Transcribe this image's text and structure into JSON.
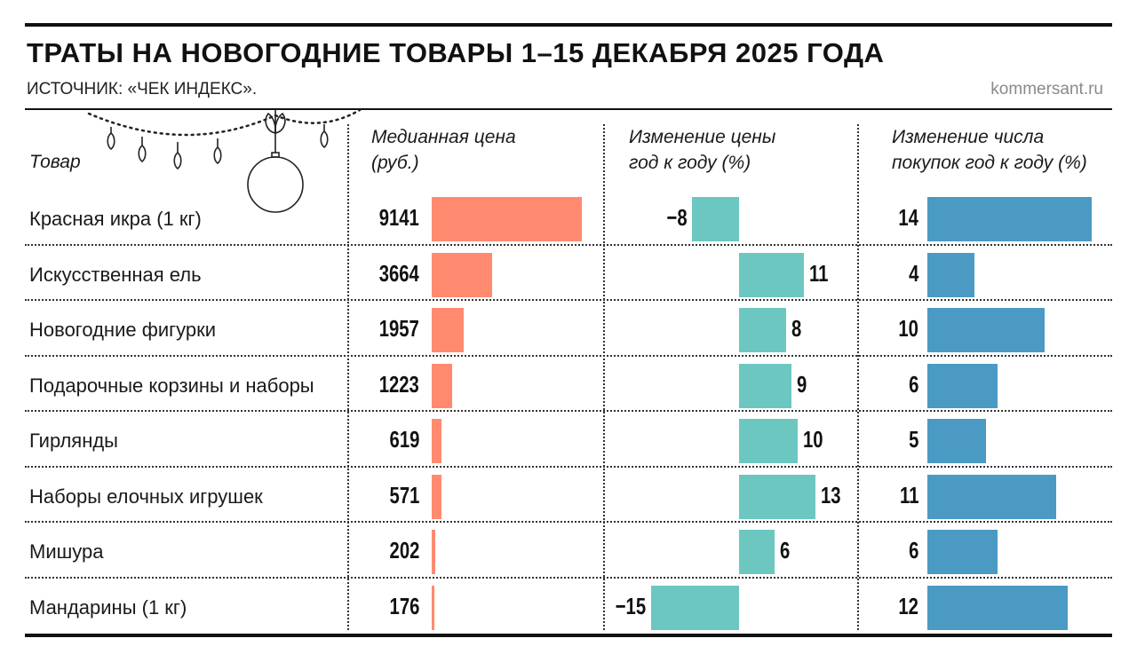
{
  "title": "ТРАТЫ НА НОВОГОДНИЕ ТОВАРЫ 1–15 ДЕКАБРЯ 2025 ГОДА",
  "source": "ИСТОЧНИК: «ЧЕК ИНДЕКС».",
  "credit": "kommersant.ru",
  "colors": {
    "price": "#ff8a70",
    "change": "#6cc7c1",
    "purchases": "#4a9ac4"
  },
  "chart_data": {
    "type": "bar",
    "categories": [
      "Красная икра (1 кг)",
      "Искусственная ель",
      "Новогодние фигурки",
      "Подарочные корзины и наборы",
      "Гирлянды",
      "Наборы елочных игрушек",
      "Мишура",
      "Мандарины (1 кг)"
    ],
    "category_header": "Товар",
    "series": [
      {
        "name": "Медианная цена (руб.)",
        "header": [
          "Медианная цена",
          "(руб.)"
        ],
        "values": [
          9141,
          3664,
          1957,
          1223,
          619,
          571,
          202,
          176
        ]
      },
      {
        "name": "Изменение цены год к году (%)",
        "header": [
          "Изменение цены",
          "год к году (%)"
        ],
        "values": [
          -8,
          11,
          8,
          9,
          10,
          13,
          6,
          -15
        ]
      },
      {
        "name": "Изменение числа покупок год к году (%)",
        "header": [
          "Изменение числа",
          "покупок год к году (%)"
        ],
        "values": [
          14,
          4,
          10,
          6,
          5,
          11,
          6,
          12
        ]
      }
    ]
  }
}
